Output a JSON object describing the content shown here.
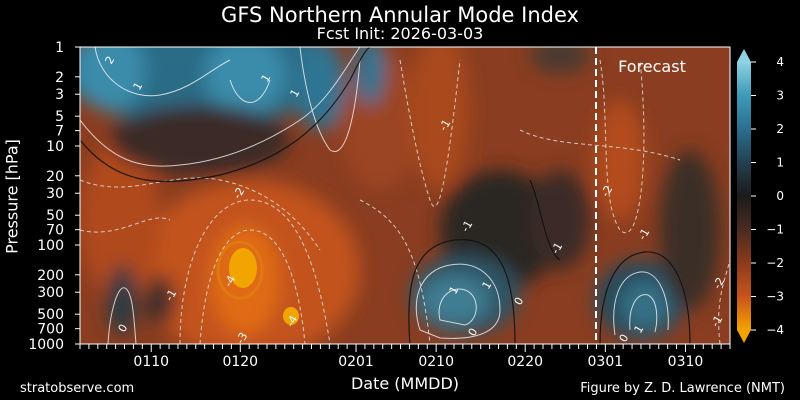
{
  "chart_data": {
    "type": "heatmap",
    "title": "GFS Northern Annular Mode Index",
    "subtitle": "Fcst Init: 2026-03-03",
    "xlabel": "Date (MMDD)",
    "ylabel": "Pressure [hPa]",
    "x_tick_labels": [
      "0110",
      "0120",
      "0201",
      "0210",
      "0220",
      "0301",
      "0310"
    ],
    "y_tick_labels": [
      "1",
      "2",
      "3",
      "5",
      "7",
      "10",
      "20",
      "30",
      "50",
      "70",
      "100",
      "200",
      "300",
      "500",
      "700",
      "1000"
    ],
    "y_ticks_hpa": [
      1,
      2,
      3,
      5,
      7,
      10,
      20,
      30,
      50,
      70,
      100,
      200,
      300,
      500,
      700,
      1000
    ],
    "ylim_hpa": [
      1000,
      1
    ],
    "clim": [
      -4,
      4
    ],
    "colorbar_ticks": [
      "4",
      "3",
      "2",
      "1",
      "0",
      "−1",
      "−2",
      "−3",
      "−4"
    ],
    "forecast_label": "Forecast",
    "contour_labels": [
      {
        "text": "2"
      },
      {
        "text": "1"
      },
      {
        "text": "1"
      },
      {
        "text": "1"
      },
      {
        "text": "-1"
      },
      {
        "text": "-2"
      },
      {
        "text": "-4"
      },
      {
        "text": "-4"
      },
      {
        "text": "-3"
      },
      {
        "text": "-1"
      },
      {
        "text": "0"
      },
      {
        "text": "-2"
      },
      {
        "text": "-1"
      },
      {
        "text": "-1"
      },
      {
        "text": "1"
      },
      {
        "text": "1"
      },
      {
        "text": "0"
      },
      {
        "text": "0"
      },
      {
        "text": "-1"
      },
      {
        "text": "0"
      },
      {
        "text": "1"
      },
      {
        "text": "-2"
      },
      {
        "text": "-1"
      }
    ]
  },
  "credits": {
    "left": "stratobserve.com",
    "right": "Figure by Z. D. Lawrence (NMT)"
  }
}
